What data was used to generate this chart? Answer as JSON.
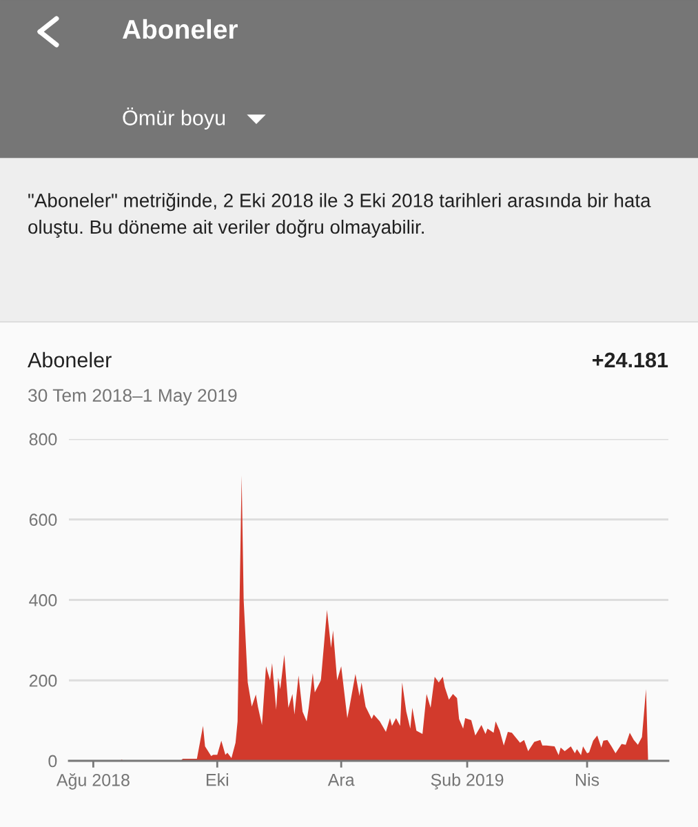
{
  "chart_data": {
    "type": "area",
    "title": "Aboneler",
    "subtitle": "30 Tem 2018–1 May 2019",
    "annotations": [
      "Ömür boyu",
      "\"Aboneler\" metriğinde, 2 Eki 2018 ile 3 Eki 2018 tarihleri arasında bir hata oluştu. Bu döneme ait veriler doğru olmayabilir.",
      "Aboneler",
      "+24.181"
    ],
    "x": [
      "2018-07-30",
      "2018-08-14",
      "2018-08-15",
      "2018-08-16",
      "2018-09-13",
      "2018-09-14",
      "2018-09-21",
      "2018-09-24",
      "2018-09-25",
      "2018-09-28",
      "2018-09-29",
      "2018-10-01",
      "2018-10-03",
      "2018-10-05",
      "2018-10-06",
      "2018-10-08",
      "2018-10-10",
      "2018-10-11",
      "2018-10-13",
      "2018-10-14",
      "2018-10-16",
      "2018-10-18",
      "2018-10-20",
      "2018-10-21",
      "2018-10-23",
      "2018-10-25",
      "2018-10-27",
      "2018-10-28",
      "2018-10-30",
      "2018-10-31",
      "2018-11-01",
      "2018-11-03",
      "2018-11-05",
      "2018-11-07",
      "2018-11-08",
      "2018-11-10",
      "2018-11-12",
      "2018-11-14",
      "2018-11-15",
      "2018-11-17",
      "2018-11-18",
      "2018-11-21",
      "2018-11-24",
      "2018-11-26",
      "2018-11-27",
      "2018-11-29",
      "2018-12-01",
      "2018-12-04",
      "2018-12-05",
      "2018-12-08",
      "2018-12-10",
      "2018-12-11",
      "2018-12-13",
      "2018-12-16",
      "2018-12-17",
      "2018-12-20",
      "2018-12-23",
      "2018-12-25",
      "2018-12-26",
      "2018-12-28",
      "2018-12-30",
      "2018-12-31",
      "2019-01-02",
      "2019-01-04",
      "2019-01-05",
      "2019-01-07",
      "2019-01-10",
      "2019-01-12",
      "2019-01-14",
      "2019-01-16",
      "2019-01-18",
      "2019-01-20",
      "2019-01-21",
      "2019-01-23",
      "2019-01-25",
      "2019-01-27",
      "2019-01-28",
      "2019-01-30",
      "2019-01-31",
      "2019-02-03",
      "2019-02-05",
      "2019-02-08",
      "2019-02-10",
      "2019-02-11",
      "2019-02-14",
      "2019-02-15",
      "2019-02-17",
      "2019-02-19",
      "2019-02-21",
      "2019-02-23",
      "2019-02-27",
      "2019-03-01",
      "2019-03-03",
      "2019-03-06",
      "2019-03-09",
      "2019-03-10",
      "2019-03-12",
      "2019-03-16",
      "2019-03-18",
      "2019-03-19",
      "2019-03-21",
      "2019-03-24",
      "2019-03-26",
      "2019-03-27",
      "2019-03-29",
      "2019-03-30",
      "2019-04-01",
      "2019-04-02",
      "2019-04-04",
      "2019-04-06",
      "2019-04-08",
      "2019-04-09",
      "2019-04-11",
      "2019-04-13",
      "2019-04-15",
      "2019-04-18",
      "2019-04-20",
      "2019-04-22",
      "2019-04-24",
      "2019-04-26",
      "2019-04-28",
      "2019-04-30",
      "2019-05-01"
    ],
    "series": [
      {
        "color": "#d23a2c",
        "values": [
          0,
          0,
          3,
          0,
          0,
          5,
          5,
          87,
          36,
          12,
          15,
          15,
          50,
          15,
          20,
          7,
          45,
          98,
          709,
          400,
          195,
          135,
          165,
          135,
          89,
          235,
          200,
          243,
          127,
          207,
          178,
          264,
          132,
          166,
          115,
          212,
          122,
          98,
          132,
          218,
          170,
          200,
          375,
          281,
          324,
          200,
          235,
          106,
          132,
          216,
          161,
          195,
          135,
          104,
          115,
          98,
          72,
          106,
          87,
          106,
          87,
          195,
          123,
          80,
          132,
          75,
          67,
          166,
          132,
          209,
          195,
          209,
          183,
          152,
          166,
          156,
          104,
          80,
          106,
          101,
          63,
          89,
          67,
          80,
          70,
          98,
          75,
          38,
          72,
          70,
          45,
          52,
          24,
          47,
          52,
          38,
          38,
          36,
          14,
          33,
          24,
          36,
          19,
          29,
          14,
          36,
          19,
          21,
          50,
          63,
          33,
          50,
          52,
          36,
          19,
          42,
          40,
          70,
          52,
          40,
          59,
          178,
          5
        ]
      }
    ],
    "xlim": [
      "2018-07-20",
      "2019-05-11"
    ],
    "xticks": [
      {
        "value": "2018-08-01",
        "label": "Ağu 2018"
      },
      {
        "value": "2018-10-01",
        "label": "Eki"
      },
      {
        "value": "2018-12-01",
        "label": "Ara"
      },
      {
        "value": "2019-02-01",
        "label": "Şub 2019"
      },
      {
        "value": "2019-04-01",
        "label": "Nis"
      }
    ],
    "ylim": [
      0,
      800
    ],
    "yticks": [
      0,
      200,
      400,
      600,
      800
    ],
    "grid": "y"
  }
}
